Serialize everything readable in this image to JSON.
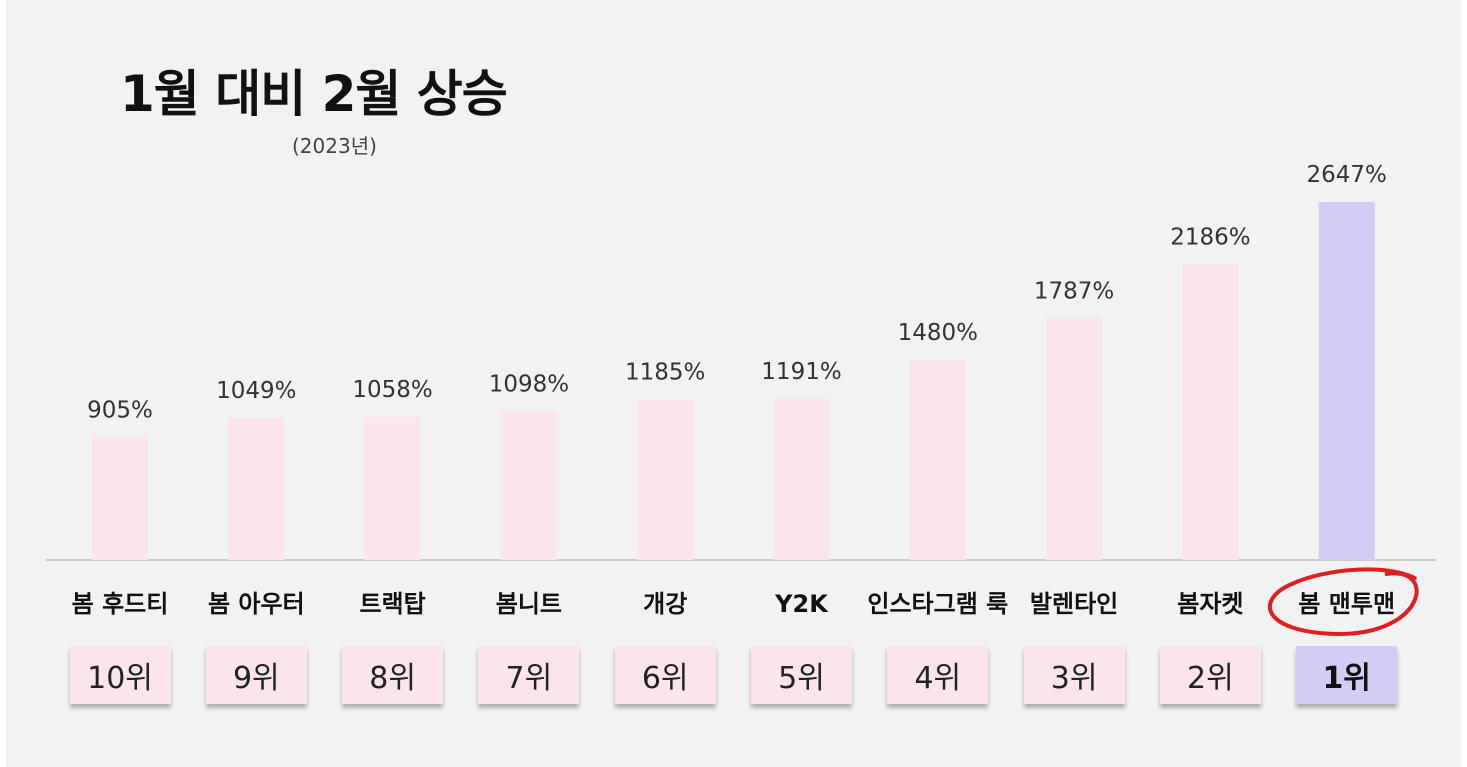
{
  "colors": {
    "background": "#f2f2f2",
    "bar": "#fce4ec",
    "bar_highlight": "#d4ccf7",
    "rank_box": "#fce4ec",
    "rank_box_highlight": "#d4ccf7",
    "baseline": "#bfbfbf",
    "circle_annotation": "#e02020"
  },
  "chart_data": {
    "type": "bar",
    "title": "1월 대비 2월 상승",
    "subtitle": "(2023년)",
    "categories": [
      "봄 후드티",
      "봄 아우터",
      "트랙탑",
      "봄니트",
      "개강",
      "Y2K",
      "인스타그램 룩",
      "발렌타인",
      "봄자켓",
      "봄 맨투맨"
    ],
    "values": [
      905,
      1049,
      1058,
      1098,
      1185,
      1191,
      1480,
      1787,
      2186,
      2647
    ],
    "value_labels": [
      "905%",
      "1049%",
      "1058%",
      "1098%",
      "1185%",
      "1191%",
      "1480%",
      "1787%",
      "2186%",
      "2647%"
    ],
    "ranks": [
      "10위",
      "9위",
      "8위",
      "7위",
      "6위",
      "5위",
      "4위",
      "3위",
      "2위",
      "1위"
    ],
    "highlight_index": 9,
    "ylim": [
      0,
      2647
    ],
    "grid": false,
    "legend": "none"
  }
}
